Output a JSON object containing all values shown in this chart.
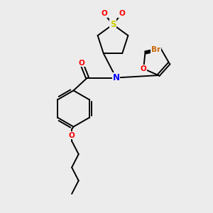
{
  "bg_color": "#ececec",
  "bond_color": "#000000",
  "line_width": 1.4,
  "atom_colors": {
    "O": "#ff0000",
    "N": "#0000ff",
    "S": "#cccc00",
    "Br": "#cc6600",
    "C": "#000000"
  },
  "font_size": 7.5
}
